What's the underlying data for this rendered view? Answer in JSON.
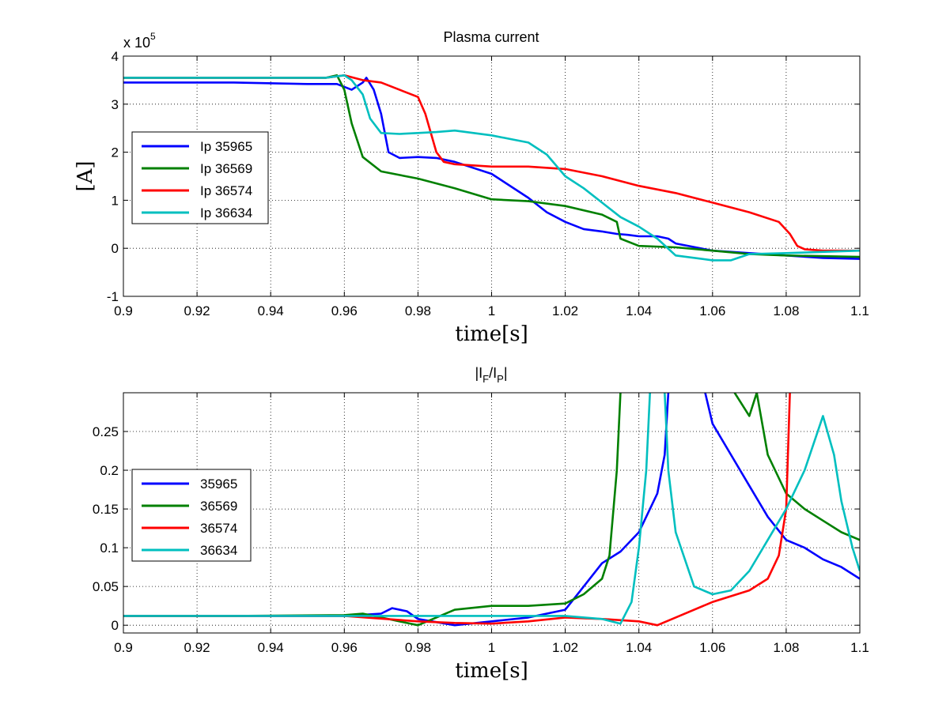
{
  "chart_data": [
    {
      "type": "line",
      "title": "Plasma current",
      "xlabel": "time[s]",
      "ylabel": "[A]",
      "y_exponent_label": "x 10",
      "y_exponent_power": "5",
      "xlim": [
        0.9,
        1.1
      ],
      "ylim": [
        -1,
        4
      ],
      "grid": true,
      "legend_position": "left",
      "x_ticks": [
        "0.9",
        "0.92",
        "0.94",
        "0.96",
        "0.98",
        "1",
        "1.02",
        "1.04",
        "1.06",
        "1.08",
        "1.1"
      ],
      "y_ticks": [
        "-1",
        "0",
        "1",
        "2",
        "3",
        "4"
      ],
      "series": [
        {
          "name": "Ip 35965",
          "color": "#0000ff",
          "x": [
            0.9,
            0.93,
            0.95,
            0.958,
            0.962,
            0.965,
            0.966,
            0.968,
            0.97,
            0.972,
            0.975,
            0.98,
            0.985,
            0.99,
            1.0,
            1.01,
            1.015,
            1.02,
            1.025,
            1.03,
            1.034,
            1.037,
            1.04,
            1.045,
            1.048,
            1.05,
            1.06,
            1.07,
            1.08,
            1.09,
            1.1
          ],
          "y": [
            3.45,
            3.45,
            3.42,
            3.42,
            3.3,
            3.45,
            3.55,
            3.3,
            2.8,
            2.0,
            1.88,
            1.9,
            1.88,
            1.8,
            1.55,
            1.05,
            0.75,
            0.55,
            0.4,
            0.35,
            0.3,
            0.28,
            0.25,
            0.25,
            0.2,
            0.1,
            -0.05,
            -0.1,
            -0.15,
            -0.2,
            -0.22
          ]
        },
        {
          "name": "Ip 36569",
          "color": "#008000",
          "x": [
            0.9,
            0.93,
            0.955,
            0.958,
            0.96,
            0.962,
            0.965,
            0.97,
            0.98,
            0.985,
            0.99,
            1.0,
            1.01,
            1.02,
            1.03,
            1.034,
            1.035,
            1.04,
            1.05,
            1.06,
            1.07,
            1.08,
            1.1
          ],
          "y": [
            3.55,
            3.55,
            3.55,
            3.6,
            3.3,
            2.6,
            1.9,
            1.6,
            1.45,
            1.35,
            1.25,
            1.02,
            0.98,
            0.88,
            0.7,
            0.55,
            0.2,
            0.05,
            0.02,
            -0.05,
            -0.12,
            -0.15,
            -0.18
          ]
        },
        {
          "name": "Ip 36574",
          "color": "#ff0000",
          "x": [
            0.9,
            0.93,
            0.955,
            0.96,
            0.965,
            0.97,
            0.975,
            0.98,
            0.982,
            0.985,
            0.987,
            0.99,
            1.0,
            1.01,
            1.02,
            1.03,
            1.04,
            1.05,
            1.06,
            1.07,
            1.078,
            1.081,
            1.083,
            1.085,
            1.09,
            1.1
          ],
          "y": [
            3.55,
            3.55,
            3.55,
            3.6,
            3.5,
            3.45,
            3.3,
            3.15,
            2.8,
            2.0,
            1.8,
            1.75,
            1.7,
            1.7,
            1.65,
            1.5,
            1.3,
            1.15,
            0.95,
            0.75,
            0.55,
            0.3,
            0.05,
            -0.02,
            -0.05,
            -0.05
          ]
        },
        {
          "name": "Ip 36634",
          "color": "#00bfbf",
          "x": [
            0.9,
            0.93,
            0.955,
            0.96,
            0.962,
            0.965,
            0.967,
            0.97,
            0.975,
            0.98,
            0.985,
            0.99,
            1.0,
            1.01,
            1.015,
            1.02,
            1.025,
            1.03,
            1.035,
            1.04,
            1.045,
            1.05,
            1.06,
            1.065,
            1.07,
            1.08,
            1.1
          ],
          "y": [
            3.55,
            3.55,
            3.55,
            3.6,
            3.5,
            3.2,
            2.7,
            2.4,
            2.38,
            2.4,
            2.42,
            2.45,
            2.35,
            2.2,
            1.95,
            1.5,
            1.25,
            0.95,
            0.65,
            0.45,
            0.2,
            -0.15,
            -0.25,
            -0.25,
            -0.12,
            -0.1,
            -0.05
          ]
        }
      ]
    },
    {
      "type": "line",
      "title_main": "|I",
      "title_sub1": "F",
      "title_mid": "/I",
      "title_sub2": "P",
      "title_end": "|",
      "xlabel": "time[s]",
      "xlim": [
        0.9,
        1.1
      ],
      "ylim": [
        -0.01,
        0.3
      ],
      "grid": true,
      "legend_position": "left",
      "x_ticks": [
        "0.9",
        "0.92",
        "0.94",
        "0.96",
        "0.98",
        "1",
        "1.02",
        "1.04",
        "1.06",
        "1.08",
        "1.1"
      ],
      "y_ticks": [
        "0",
        "0.05",
        "0.1",
        "0.15",
        "0.2",
        "0.25"
      ],
      "y_tick_values": [
        0,
        0.05,
        0.1,
        0.15,
        0.2,
        0.25
      ],
      "series": [
        {
          "name": "35965",
          "color": "#0000ff",
          "segments": [
            {
              "x": [
                0.9,
                0.93,
                0.96,
                0.97,
                0.973,
                0.977,
                0.98,
                0.99,
                1.0,
                1.01,
                1.02,
                1.025,
                1.03,
                1.035,
                1.04,
                1.045,
                1.047,
                1.048
              ],
              "y": [
                0.012,
                0.012,
                0.012,
                0.015,
                0.022,
                0.018,
                0.008,
                0.0,
                0.005,
                0.01,
                0.02,
                0.05,
                0.08,
                0.095,
                0.12,
                0.17,
                0.22,
                0.3
              ]
            },
            {
              "x": [
                1.058,
                1.06,
                1.065,
                1.07,
                1.075,
                1.08,
                1.085,
                1.09,
                1.095,
                1.1
              ],
              "y": [
                0.3,
                0.26,
                0.22,
                0.18,
                0.14,
                0.11,
                0.1,
                0.085,
                0.075,
                0.06
              ]
            }
          ]
        },
        {
          "name": "36569",
          "color": "#008000",
          "segments": [
            {
              "x": [
                0.9,
                0.93,
                0.96,
                0.965,
                0.97,
                0.975,
                0.98,
                0.985,
                0.99,
                1.0,
                1.01,
                1.02,
                1.025,
                1.03,
                1.032,
                1.034,
                1.035
              ],
              "y": [
                0.012,
                0.012,
                0.013,
                0.015,
                0.01,
                0.005,
                0.0,
                0.01,
                0.02,
                0.025,
                0.025,
                0.028,
                0.04,
                0.06,
                0.09,
                0.2,
                0.3
              ]
            },
            {
              "x": [
                1.066,
                1.07,
                1.072,
                1.075,
                1.08,
                1.085,
                1.09,
                1.095,
                1.1
              ],
              "y": [
                0.3,
                0.27,
                0.3,
                0.22,
                0.17,
                0.15,
                0.135,
                0.12,
                0.11
              ]
            }
          ]
        },
        {
          "name": "36574",
          "color": "#ff0000",
          "segments": [
            {
              "x": [
                0.9,
                0.93,
                0.96,
                0.98,
                0.99,
                1.0,
                1.01,
                1.02,
                1.03,
                1.04,
                1.045,
                1.05,
                1.06,
                1.07,
                1.075,
                1.078,
                1.08,
                1.081
              ],
              "y": [
                0.012,
                0.012,
                0.012,
                0.005,
                0.003,
                0.002,
                0.005,
                0.01,
                0.008,
                0.005,
                0.0,
                0.01,
                0.03,
                0.045,
                0.06,
                0.09,
                0.15,
                0.3
              ]
            }
          ]
        },
        {
          "name": "36634",
          "color": "#00bfbf",
          "segments": [
            {
              "x": [
                0.9,
                0.93,
                0.96,
                0.98,
                1.0,
                1.02,
                1.03,
                1.035,
                1.038,
                1.04,
                1.042,
                1.043
              ],
              "y": [
                0.012,
                0.012,
                0.012,
                0.012,
                0.012,
                0.012,
                0.008,
                0.002,
                0.03,
                0.1,
                0.2,
                0.3
              ]
            },
            {
              "x": [
                1.047,
                1.048,
                1.05,
                1.055,
                1.06,
                1.065,
                1.07,
                1.075,
                1.08,
                1.085,
                1.09,
                1.093,
                1.095,
                1.098,
                1.1
              ],
              "y": [
                0.3,
                0.2,
                0.12,
                0.05,
                0.04,
                0.045,
                0.07,
                0.11,
                0.15,
                0.2,
                0.27,
                0.22,
                0.16,
                0.1,
                0.07
              ]
            }
          ]
        }
      ]
    }
  ]
}
